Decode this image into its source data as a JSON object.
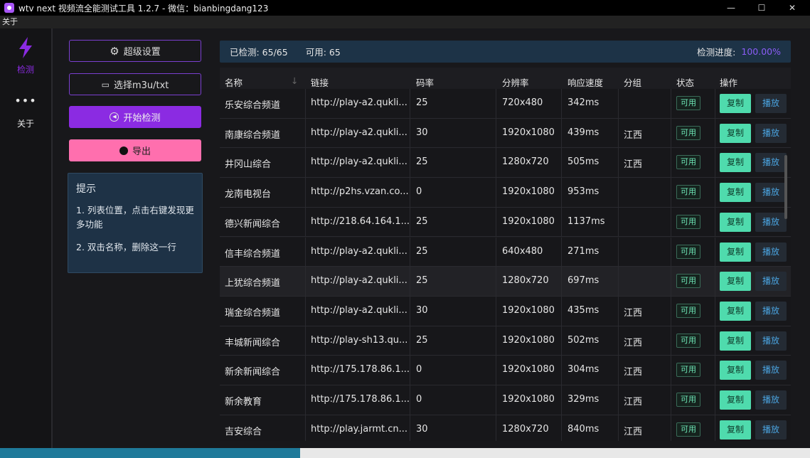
{
  "window": {
    "title": "wtv next 视频流全能测试工具 1.2.7 - 微信：bianbingdang123",
    "minimize": "—",
    "maximize": "☐",
    "close": "✕"
  },
  "menu": {
    "about": "关于"
  },
  "nav": {
    "detect": "检测",
    "more": "•••",
    "about": "关于"
  },
  "buttons": {
    "settings": "超级设置",
    "select_file": "选择m3u/txt",
    "start": "开始检测",
    "export": "导出"
  },
  "tips": {
    "title": "提示",
    "line1": "1. 列表位置，点击右键发现更多功能",
    "line2": "2. 双击名称，删除这一行"
  },
  "status": {
    "checked": "已检测: 65/65",
    "available": "可用: 65",
    "progress_label": "检测进度:",
    "progress": "100.00%"
  },
  "colors": {
    "accent": "#8b2be2",
    "export": "#ff6fae",
    "copy": "#4fdbad",
    "progress": "#8b5cf6"
  },
  "table": {
    "headers": [
      "名称",
      "链接",
      "码率",
      "分辨率",
      "响应速度",
      "分组",
      "状态",
      "操作"
    ],
    "status_label": "可用",
    "copy_label": "复制",
    "play_label": "播放",
    "rows": [
      {
        "name": "乐安综合频道",
        "link": "http://play-a2.qukli...",
        "rate": "25",
        "res": "720x480",
        "speed": "342ms",
        "group": ""
      },
      {
        "name": "南康综合频道",
        "link": "http://play-a2.qukli...",
        "rate": "30",
        "res": "1920x1080",
        "speed": "439ms",
        "group": "江西"
      },
      {
        "name": "井冈山综合",
        "link": "http://play-a2.qukli...",
        "rate": "25",
        "res": "1280x720",
        "speed": "505ms",
        "group": "江西"
      },
      {
        "name": "龙南电视台",
        "link": "http://p2hs.vzan.co...",
        "rate": "0",
        "res": "1920x1080",
        "speed": "953ms",
        "group": ""
      },
      {
        "name": "德兴新闻综合",
        "link": "http://218.64.164.1...",
        "rate": "25",
        "res": "1920x1080",
        "speed": "1137ms",
        "group": ""
      },
      {
        "name": "信丰综合频道",
        "link": "http://play-a2.qukli...",
        "rate": "25",
        "res": "640x480",
        "speed": "271ms",
        "group": ""
      },
      {
        "name": "上犹综合频道",
        "link": "http://play-a2.qukli...",
        "rate": "25",
        "res": "1280x720",
        "speed": "697ms",
        "group": ""
      },
      {
        "name": "瑞金综合频道",
        "link": "http://play-a2.qukli...",
        "rate": "30",
        "res": "1920x1080",
        "speed": "435ms",
        "group": "江西"
      },
      {
        "name": "丰城新闻综合",
        "link": "http://play-sh13.qu...",
        "rate": "25",
        "res": "1920x1080",
        "speed": "502ms",
        "group": "江西"
      },
      {
        "name": "新余新闻综合",
        "link": "http://175.178.86.1...",
        "rate": "0",
        "res": "1920x1080",
        "speed": "304ms",
        "group": "江西"
      },
      {
        "name": "新余教育",
        "link": "http://175.178.86.1...",
        "rate": "0",
        "res": "1920x1080",
        "speed": "329ms",
        "group": "江西"
      },
      {
        "name": "吉安综合",
        "link": "http://play.jarmt.cn...",
        "rate": "30",
        "res": "1280x720",
        "speed": "840ms",
        "group": "江西"
      }
    ]
  }
}
